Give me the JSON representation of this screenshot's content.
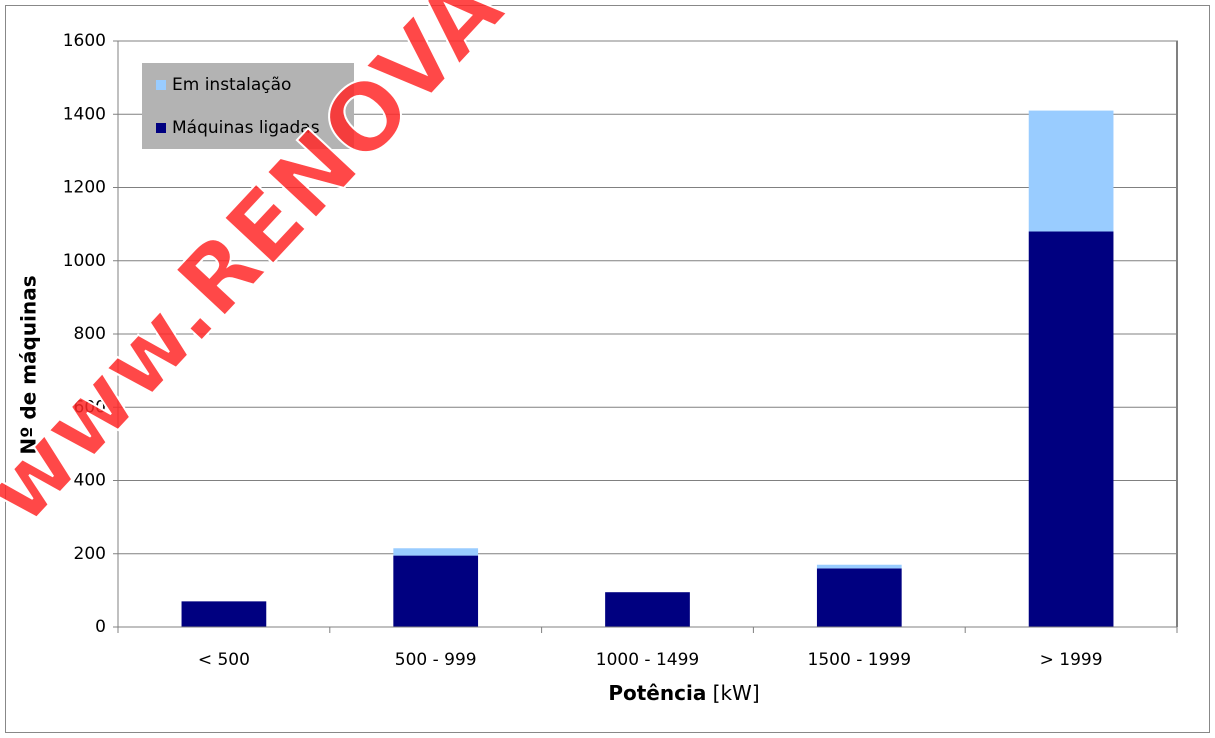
{
  "chart_data": {
    "type": "stacked_bar",
    "categories": [
      "< 500",
      "500 - 999",
      "1000 - 1499",
      "1500 - 1999",
      "> 1999"
    ],
    "series": [
      {
        "name": "Máquinas ligadas",
        "color": "#000080",
        "values": [
          70,
          195,
          95,
          160,
          1080
        ]
      },
      {
        "name": "Em instalação",
        "color": "#99ccff",
        "values": [
          0,
          20,
          0,
          10,
          330
        ]
      }
    ],
    "ylim": [
      0,
      1600
    ],
    "yticks": [
      0,
      200,
      400,
      600,
      800,
      1000,
      1200,
      1400,
      1600
    ],
    "grid": true,
    "y_label": "Nº de máquinas",
    "x_label": "Potência",
    "x_unit": "[kW]",
    "legend": "top-left",
    "watermark": "www.RENOVAV"
  }
}
